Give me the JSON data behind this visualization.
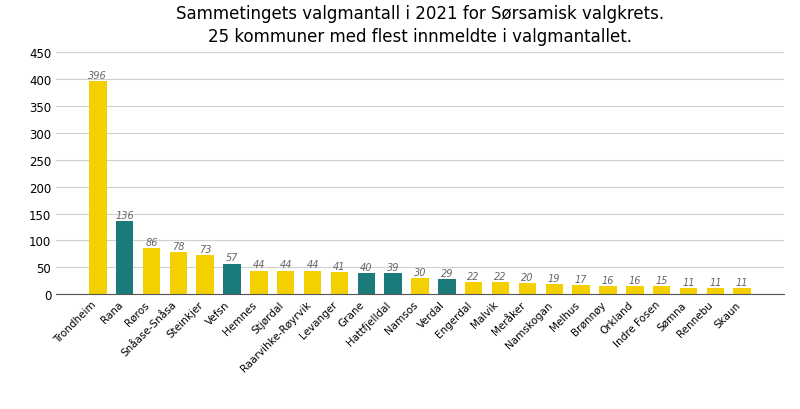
{
  "title": "Sammetingets valgmantall i 2021 for Sørsamisk valgkrets.\n25 kommuner med flest innmeldte i valgmantallet.",
  "categories": [
    "Trondheim",
    "Rana",
    "Røros",
    "Snåase-Snåsa",
    "Steinkjer",
    "Vefsn",
    "Hemnes",
    "Stjørdal",
    "Raarvihke-Røyrvik",
    "Levanger",
    "Grane",
    "Hattfjelldal",
    "Namsos",
    "Verdal",
    "Engerdal",
    "Malvik",
    "Meråker",
    "Namskogan",
    "Melhus",
    "Brønnøy",
    "Orkland",
    "Indre Fosen",
    "Sømna",
    "Rennebu",
    "Skaun"
  ],
  "values": [
    396,
    136,
    86,
    78,
    73,
    57,
    44,
    44,
    44,
    41,
    40,
    39,
    30,
    29,
    22,
    22,
    20,
    19,
    17,
    16,
    16,
    15,
    11,
    11,
    11
  ],
  "colors": [
    "#F5D000",
    "#1B7B7B",
    "#F5D000",
    "#F5D000",
    "#F5D000",
    "#1B7B7B",
    "#F5D000",
    "#F5D000",
    "#F5D000",
    "#F5D000",
    "#1B7B7B",
    "#1B7B7B",
    "#F5D000",
    "#1B7B7B",
    "#F5D000",
    "#F5D000",
    "#F5D000",
    "#F5D000",
    "#F5D000",
    "#F5D000",
    "#F5D000",
    "#F5D000",
    "#F5D000",
    "#F5D000",
    "#F5D000"
  ],
  "ylim": [
    0,
    450
  ],
  "yticks": [
    0,
    50,
    100,
    150,
    200,
    250,
    300,
    350,
    400,
    450
  ],
  "background_color": "#ffffff",
  "grid_color": "#d0d0d0",
  "title_fontsize": 12,
  "label_fontsize": 7.5,
  "tick_fontsize": 8.5,
  "value_fontsize": 7,
  "bar_width": 0.65
}
